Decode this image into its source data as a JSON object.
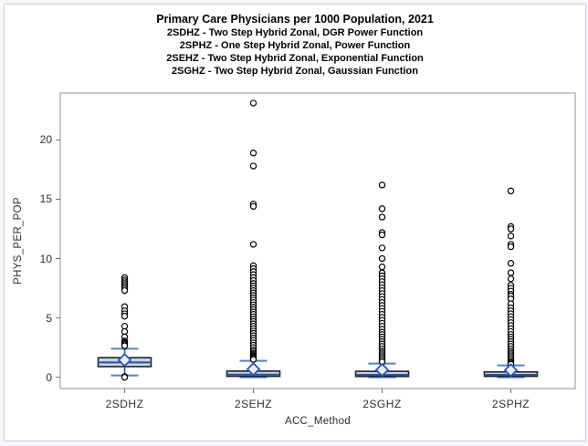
{
  "panel": {
    "background": "#ffffff",
    "border_color": "#cccccc",
    "outer_background": "#f4f6fa"
  },
  "titles": {
    "title": "Primary Care Physicians per 1000 Population, 2021",
    "subtitles": [
      "2SDHZ - Two Step Hybrid Zonal, DGR Power Function",
      "2SPHZ - One Step Hybrid Zonal, Power Function",
      "2SEHZ - Two Step Hybrid Zonal, Exponential Function",
      "2SGHZ - Two Step Hybrid Zonal, Gaussian Function"
    ]
  },
  "chart_data": {
    "type": "boxplot",
    "title": "Primary Care Physicians per 1000 Population, 2021",
    "xlabel": "ACC_Method",
    "ylabel": "PHYS_PER_POP",
    "categories": [
      "2SDHZ",
      "2SEHZ",
      "2SGHZ",
      "2SPHZ"
    ],
    "y_axis": {
      "min": -0.95,
      "max": 23.95,
      "ticks": [
        0,
        5,
        10,
        15,
        20
      ]
    },
    "legend": "none",
    "grid": false,
    "series": [
      {
        "label": "2SDHZ",
        "q1": 0.9,
        "median": 1.25,
        "q3": 1.65,
        "mean": 1.45,
        "whisker_low": 0.15,
        "whisker_high": 2.4,
        "outliers": [
          8.4,
          8.2,
          8.05,
          7.9,
          7.75,
          7.6,
          7.45,
          7.3,
          5.95,
          5.6,
          5.35,
          5.15,
          4.3,
          3.85,
          3.4,
          3.05,
          2.95,
          2.85,
          2.75,
          2.65,
          0.05,
          0.0
        ]
      },
      {
        "label": "2SEHZ",
        "q1": 0.08,
        "median": 0.22,
        "q3": 0.52,
        "mean": 0.68,
        "whisker_low": 0.0,
        "whisker_high": 1.38,
        "outliers": [
          23.1,
          18.9,
          17.8,
          14.6,
          14.4,
          11.2,
          9.4,
          9.15,
          8.9,
          8.65,
          8.4,
          8.15,
          7.9,
          7.7,
          7.5,
          7.3,
          7.1,
          6.9,
          6.7,
          6.5,
          6.3,
          6.1,
          5.9,
          5.7,
          5.5,
          5.3,
          5.1,
          4.9,
          4.7,
          4.5,
          4.3,
          4.1,
          3.9,
          3.7,
          3.5,
          3.3,
          3.1,
          2.9,
          2.7,
          2.5,
          2.3,
          2.15,
          2.0,
          1.9,
          1.8,
          1.7,
          1.6,
          1.5
        ]
      },
      {
        "label": "2SGHZ",
        "q1": 0.07,
        "median": 0.2,
        "q3": 0.5,
        "mean": 0.62,
        "whisker_low": 0.0,
        "whisker_high": 1.15,
        "outliers": [
          16.2,
          14.2,
          13.5,
          12.2,
          12.0,
          10.9,
          10.0,
          9.3,
          8.8,
          8.55,
          8.3,
          8.05,
          7.8,
          7.55,
          7.3,
          7.05,
          6.8,
          6.55,
          6.3,
          6.05,
          5.8,
          5.55,
          5.3,
          5.05,
          4.8,
          4.55,
          4.3,
          4.05,
          3.8,
          3.6,
          3.4,
          3.2,
          3.0,
          2.8,
          2.6,
          2.4,
          2.2,
          2.05,
          1.9,
          1.75,
          1.6,
          1.45,
          1.3
        ]
      },
      {
        "label": "2SPHZ",
        "q1": 0.08,
        "median": 0.2,
        "q3": 0.45,
        "mean": 0.6,
        "whisker_low": 0.0,
        "whisker_high": 1.0,
        "outliers": [
          15.7,
          12.7,
          12.5,
          11.9,
          11.2,
          11.0,
          9.6,
          8.8,
          8.3,
          7.75,
          7.5,
          7.25,
          7.0,
          6.85,
          6.6,
          6.2,
          5.85,
          5.6,
          5.35,
          5.1,
          4.85,
          4.6,
          4.35,
          4.1,
          3.85,
          3.6,
          3.4,
          3.2,
          3.0,
          2.8,
          2.6,
          2.4,
          2.2,
          2.05,
          1.9,
          1.75,
          1.6,
          1.45,
          1.3,
          1.2,
          1.1
        ]
      }
    ],
    "colors": {
      "box_fill": "#c8d3e2",
      "box_border": "#1a2335",
      "median": "#2c4f9e",
      "mean_marker_stroke": "#2f55ad",
      "mean_marker_fill": "#e9eef6",
      "whisker": "#2c4f9e",
      "whisker_cap": "#5a7ec8",
      "outlier": "#000000",
      "frame": "#909090",
      "tick": "#707070",
      "text": "#2e2e2e"
    }
  }
}
